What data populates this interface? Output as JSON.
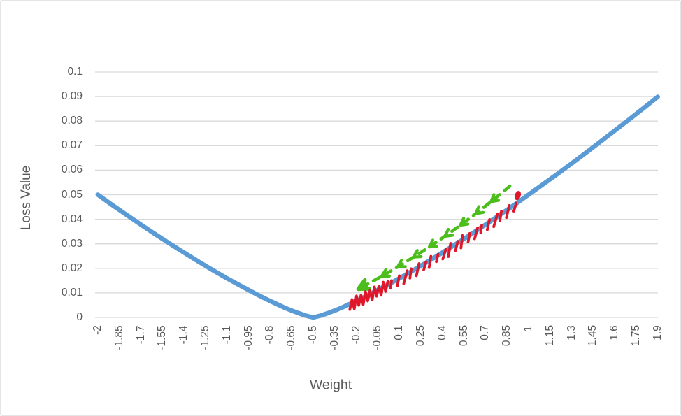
{
  "window": {
    "background": "#FFFFFF",
    "border_color": "#E5E5E5"
  },
  "chart_data": {
    "type": "line",
    "title": "",
    "xlabel": "Weight",
    "ylabel": "Loss Value",
    "xlim": [
      -2,
      1.9
    ],
    "ylim": [
      0,
      0.1
    ],
    "grid": "horizontal",
    "legend": "none",
    "axis_text_color": "#595959",
    "gridline_color": "#D9D9D9",
    "x_tick_labels": [
      "-2",
      "-1.85",
      "-1.7",
      "-1.55",
      "-1.4",
      "-1.25",
      "-1.1",
      "-0.95",
      "-0.8",
      "-0.65",
      "-0.5",
      "-0.35",
      "-0.2",
      "-0.05",
      "0.1",
      "0.25",
      "0.4",
      "0.55",
      "0.7",
      "0.85",
      "1",
      "1.15",
      "1.3",
      "1.45",
      "1.6",
      "1.75",
      "1.9"
    ],
    "y_tick_labels": [
      "0",
      "0.01",
      "0.02",
      "0.03",
      "0.04",
      "0.05",
      "0.06",
      "0.07",
      "0.08",
      "0.09",
      "0.1"
    ],
    "series": [
      {
        "name": "loss-curve",
        "color": "#5B9BD5",
        "line_width": 6.5,
        "x": [
          -2,
          -1.9,
          -1.8,
          -1.7,
          -1.6,
          -1.5,
          -1.4,
          -1.3,
          -1.2,
          -1.1,
          -1,
          -0.9,
          -0.8,
          -0.7,
          -0.65,
          -0.6,
          -0.55,
          -0.5,
          -0.45,
          -0.4,
          -0.35,
          -0.3,
          -0.2,
          -0.1,
          0,
          0.1,
          0.2,
          0.3,
          0.4,
          0.5,
          0.6,
          0.7,
          0.8,
          0.9,
          1,
          1.1,
          1.2,
          1.3,
          1.4,
          1.5,
          1.6,
          1.7,
          1.8,
          1.9
        ],
        "y": [
          0.05,
          0.0458,
          0.0418,
          0.0378,
          0.0339,
          0.0301,
          0.0264,
          0.0228,
          0.0193,
          0.0159,
          0.0127,
          0.0096,
          0.0067,
          0.004,
          0.0028,
          0.0017,
          0.0007,
          0,
          0.0007,
          0.0017,
          0.0028,
          0.004,
          0.0067,
          0.0096,
          0.0127,
          0.0159,
          0.0193,
          0.0228,
          0.0264,
          0.0301,
          0.0339,
          0.0378,
          0.0418,
          0.0458,
          0.05,
          0.0542,
          0.0584,
          0.0627,
          0.0671,
          0.0716,
          0.0761,
          0.0806,
          0.0852,
          0.0899
        ]
      }
    ],
    "annotations": [
      {
        "name": "large-step-gradient-arrow",
        "type": "dashed-arrow",
        "color": "#4CBE1B",
        "from": {
          "w": 0.87,
          "loss": 0.0535
        },
        "to": {
          "w": -0.165,
          "loss": 0.0122
        },
        "pointing": "down-left-toward-minimum"
      },
      {
        "name": "small-step-descent-marks",
        "type": "tick-marks",
        "color": "#E0162B",
        "marks": 20,
        "path_start_w": 0.05,
        "path_end_w": 0.9,
        "scribble_range_w": [
          -0.245,
          0.02
        ],
        "end_dot": {
          "w": 0.925,
          "loss": 0.0497
        }
      }
    ]
  }
}
